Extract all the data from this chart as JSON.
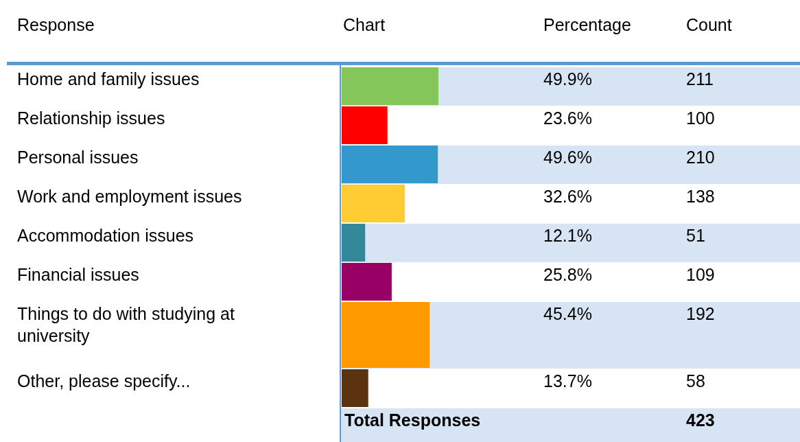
{
  "chart_data": {
    "type": "bar",
    "orientation": "horizontal",
    "categories": [
      "Home and family issues",
      "Relationship issues",
      "Personal issues",
      "Work and employment issues",
      "Accommodation issues",
      "Financial issues",
      "Things to do with studying at university",
      "Other, please specify..."
    ],
    "values": [
      49.9,
      23.6,
      49.6,
      32.6,
      12.1,
      25.8,
      45.4,
      13.7
    ],
    "value_labels": [
      "49.9%",
      "23.6%",
      "49.6%",
      "32.6%",
      "12.1%",
      "25.8%",
      "45.4%",
      "13.7%"
    ],
    "colors": [
      "#84c65a",
      "#ff0000",
      "#3399cc",
      "#ffcc33",
      "#338899",
      "#990066",
      "#ff9900",
      "#5c3311"
    ],
    "tick_labels": "y",
    "annotations": [
      "Response",
      "Chart",
      "Percentage",
      "Count",
      "211",
      "100",
      "210",
      "138",
      "51",
      "109",
      "192",
      "58",
      "Total Responses",
      "423"
    ]
  }
}
